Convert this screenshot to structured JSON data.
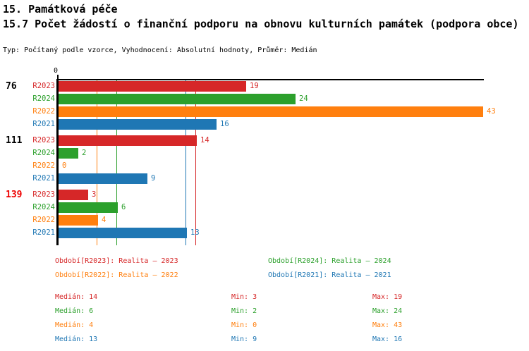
{
  "header": {
    "title_line1": "15. Památková péče",
    "title_line2": "15.7 Počet žádostí o finanční podporu na obnovu kulturních památek (podpora obce)",
    "meta": "Typ: Počítaný podle vzorce, Vyhodnocení: Absolutní hodnoty, Průměr: Medián"
  },
  "colors": {
    "R2023": "#d62728",
    "R2024": "#2ca02c",
    "R2022": "#ff7f0e",
    "R2021": "#1f77b4",
    "group_label_default": "#000000",
    "group_label_highlight": "#ee0000",
    "axis": "#000000"
  },
  "chart_data": {
    "type": "bar",
    "orientation": "horizontal",
    "x_axis": {
      "zero_label": "0",
      "min": 0,
      "max": 43
    },
    "series_order": [
      "R2023",
      "R2024",
      "R2022",
      "R2021"
    ],
    "groups": [
      {
        "label": "76",
        "label_highlight": false,
        "values": {
          "R2023": 19,
          "R2024": 24,
          "R2022": 43,
          "R2021": 16
        }
      },
      {
        "label": "111",
        "label_highlight": false,
        "values": {
          "R2023": 14,
          "R2024": 2,
          "R2022": 0,
          "R2021": 9
        }
      },
      {
        "label": "139",
        "label_highlight": true,
        "values": {
          "R2023": 3,
          "R2024": 6,
          "R2022": 4,
          "R2021": 13
        }
      }
    ],
    "median_gridlines": {
      "R2023": 14,
      "R2024": 6,
      "R2022": 4,
      "R2021": 13
    }
  },
  "legend": {
    "items": [
      {
        "series": "R2023",
        "text": "Období[R2023]: Realita – 2023"
      },
      {
        "series": "R2024",
        "text": "Období[R2024]: Realita – 2024"
      },
      {
        "series": "R2022",
        "text": "Období[R2022]: Realita – 2022"
      },
      {
        "series": "R2021",
        "text": "Období[R2021]: Realita – 2021"
      }
    ]
  },
  "stats": {
    "rows": [
      {
        "series": "R2023",
        "median_label": "Medián: 14",
        "min_label": "Min: 3",
        "max_label": "Max: 19"
      },
      {
        "series": "R2024",
        "median_label": "Medián: 6",
        "min_label": "Min: 2",
        "max_label": "Max: 24"
      },
      {
        "series": "R2022",
        "median_label": "Medián: 4",
        "min_label": "Min: 0",
        "max_label": "Max: 43"
      },
      {
        "series": "R2021",
        "median_label": "Medián: 13",
        "min_label": "Min: 9",
        "max_label": "Max: 16"
      }
    ]
  }
}
